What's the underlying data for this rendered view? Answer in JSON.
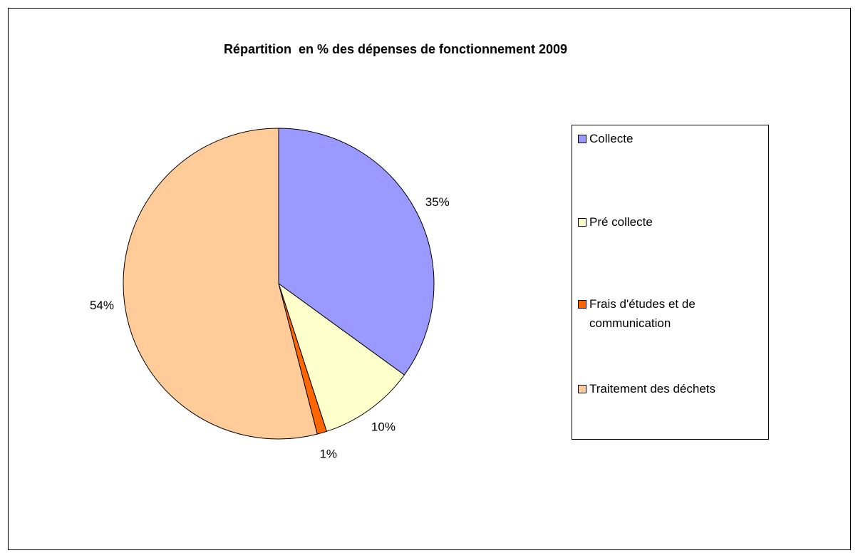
{
  "chart_data": {
    "type": "pie",
    "title": "Répartition  en % des dépenses de fonctionnement 2009",
    "categories": [
      "Collecte",
      "Pré collecte",
      "Frais d'études et de communication",
      "Traitement des déchets"
    ],
    "values": [
      35,
      10,
      1,
      54
    ],
    "value_labels": [
      "35%",
      "10%",
      "1%",
      "54%"
    ],
    "colors": [
      "#9999ff",
      "#ffffcc",
      "#ff6600",
      "#ffcc99"
    ],
    "legend": "right"
  }
}
